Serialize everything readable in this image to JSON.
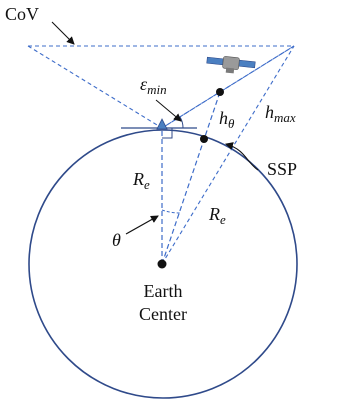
{
  "labels": {
    "cov": "CoV",
    "epsilon": "ε",
    "epsilon_sub": "min",
    "h_theta": "h",
    "h_theta_sub": "θ",
    "h_max": "h",
    "h_max_sub": "max",
    "ssp": "SSP",
    "re_left": "R",
    "re_left_sub": "e",
    "re_right": "R",
    "re_right_sub": "e",
    "theta": "θ",
    "earth_line1": "Earth",
    "earth_line2": "Center"
  },
  "colors": {
    "earth_outline": "#2f4a8a",
    "dashed": "#3d6cc9",
    "text": "#111111",
    "satellite": "#4a7fc1",
    "satellite_body": "#8a8a8a"
  }
}
